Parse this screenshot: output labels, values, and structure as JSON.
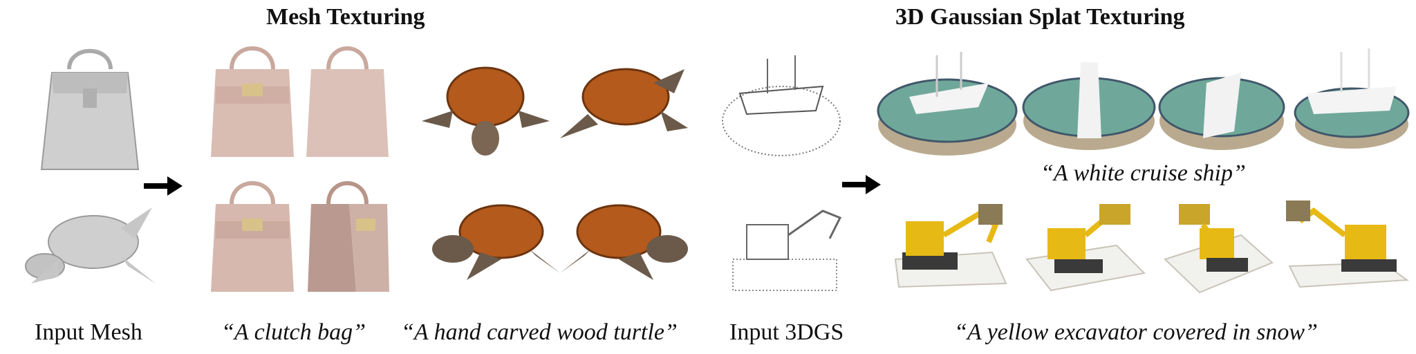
{
  "headings": {
    "mesh": "Mesh Texturing",
    "gaussian": "3D Gaussian Splat Texturing"
  },
  "captions": {
    "input_mesh": "Input Mesh",
    "clutch_bag": "“A clutch bag”",
    "turtle": "“A hand carved wood turtle”",
    "input_3dgs": "Input 3DGS",
    "cruise_ship": "“A white cruise ship”",
    "excavator": "“A yellow excavator covered in snow”"
  },
  "colors": {
    "mesh_gray": "#c9c9c9",
    "bag_pink": "#d9bcb2",
    "turtle_shell": "#b35a1c",
    "turtle_skin": "#6b5a4a",
    "ship_sea": "#6fa89a",
    "excavator_yellow": "#e7b914",
    "snow": "#f1f1ee"
  },
  "icons": [
    "right-arrow-icon",
    "right-arrow-icon"
  ]
}
